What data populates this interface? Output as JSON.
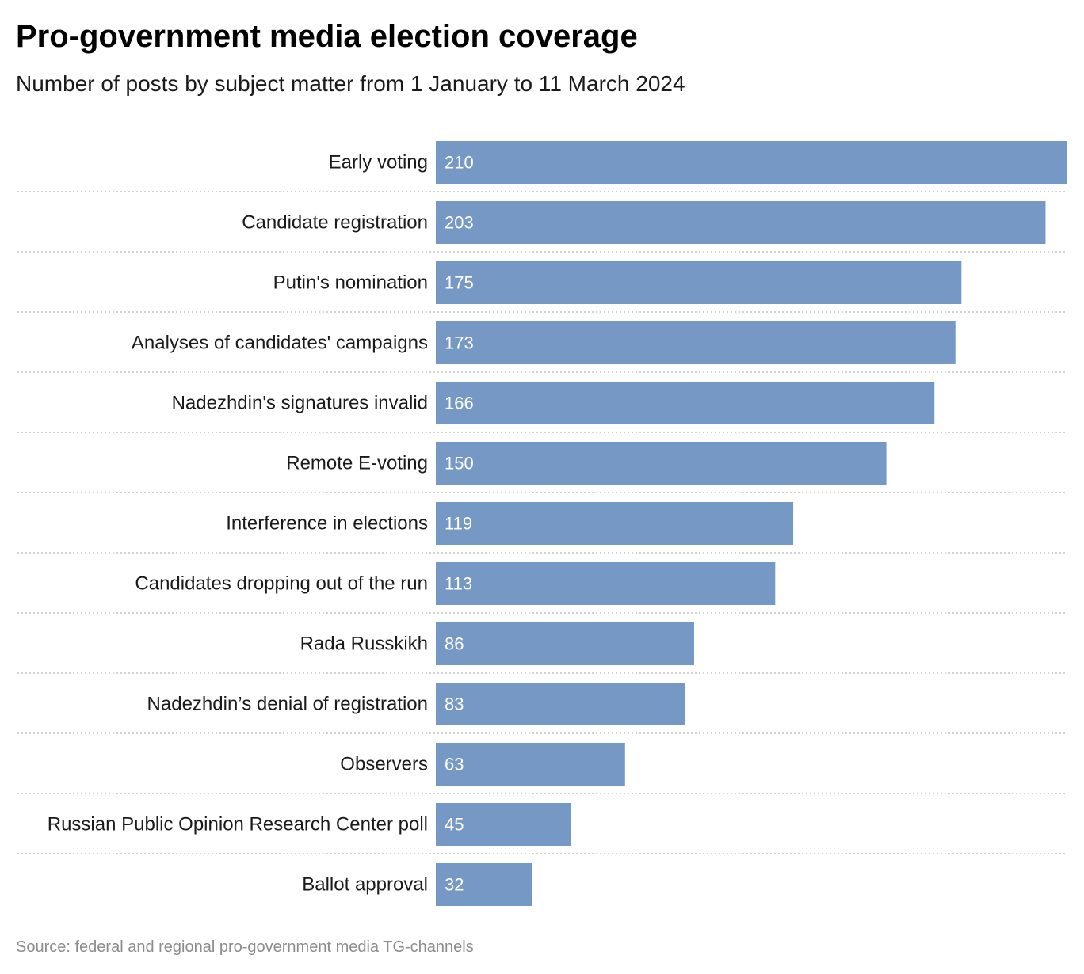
{
  "chart_data": {
    "type": "bar",
    "orientation": "horizontal",
    "title": "Pro-government media election coverage",
    "subtitle": "Number of posts by subject matter from 1 January to 11 March 2024",
    "categories": [
      "Early voting",
      "Candidate registration",
      "Putin's nomination",
      "Analyses of candidates' campaigns",
      "Nadezhdin's signatures invalid",
      "Remote E-voting",
      "Interference in elections",
      "Candidates dropping out of the run",
      "Rada Russkikh",
      "Nadezhdin’s denial of registration",
      "Observers",
      "Russian Public Opinion Research Center poll",
      "Ballot approval"
    ],
    "values": [
      210,
      203,
      175,
      173,
      166,
      150,
      119,
      113,
      86,
      83,
      63,
      45,
      32
    ],
    "xlim": [
      0,
      210
    ],
    "bar_color": "#7698c4",
    "value_label_color": "#ffffff",
    "separator": "dotted",
    "grid": false,
    "legend": false
  },
  "source": "Source: federal and regional pro-government media TG-channels"
}
